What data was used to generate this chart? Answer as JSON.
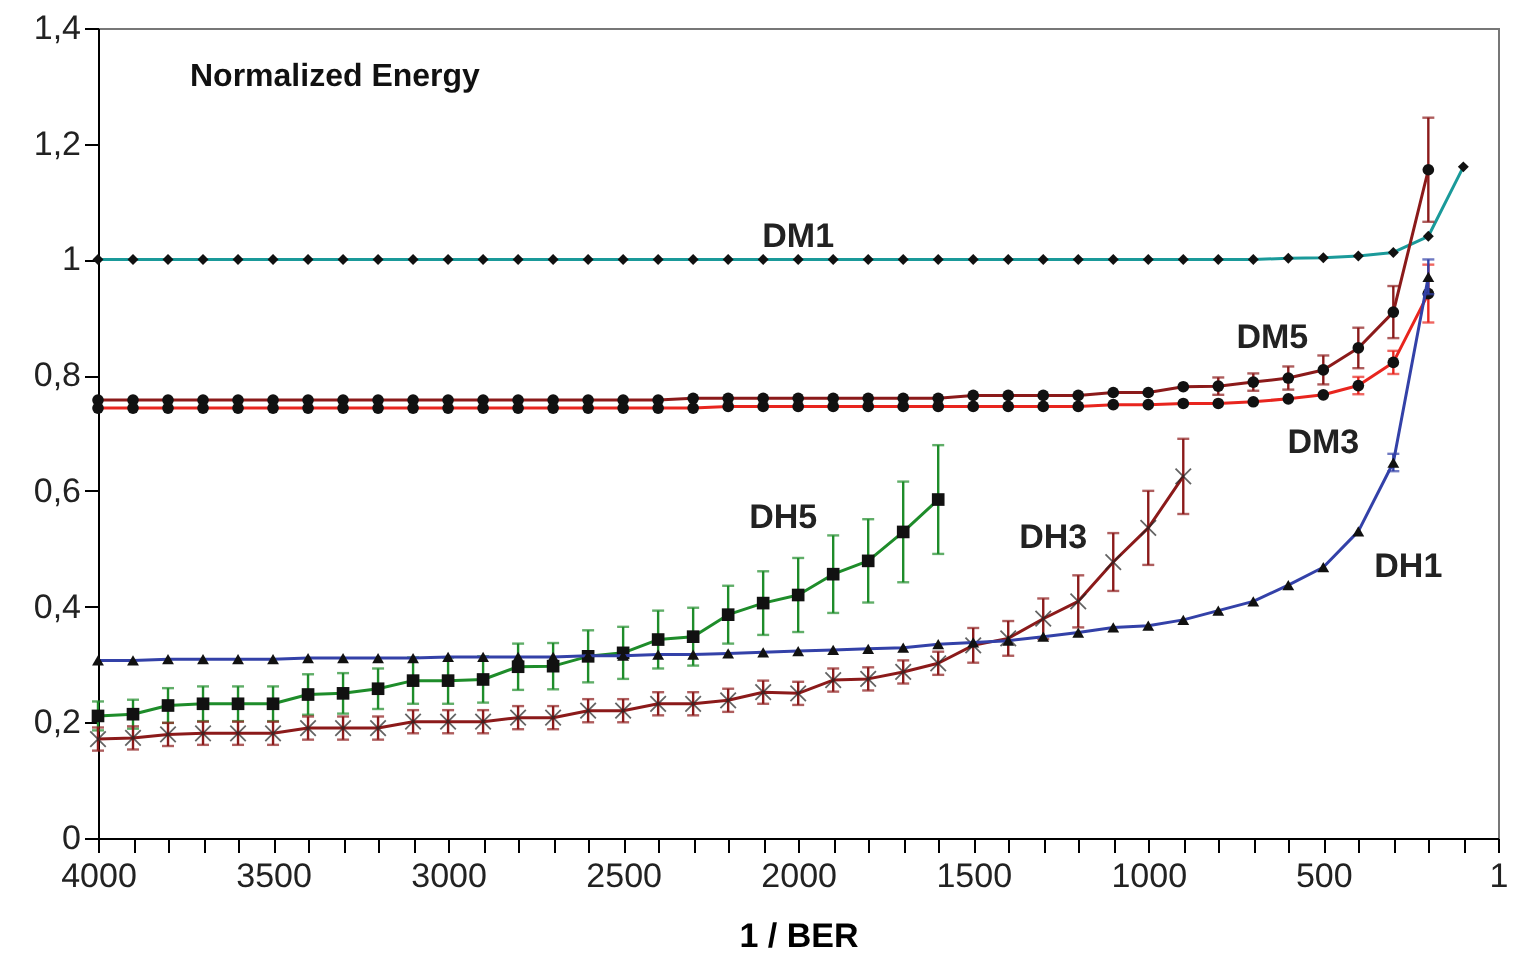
{
  "chart_data": {
    "type": "line",
    "title": "Normalized Energy",
    "xlabel": "1 / BER",
    "x": [
      4000,
      3900,
      3800,
      3700,
      3600,
      3500,
      3400,
      3300,
      3200,
      3100,
      3000,
      2900,
      2800,
      2700,
      2600,
      2500,
      2400,
      2300,
      2200,
      2100,
      2000,
      1900,
      1800,
      1700,
      1600,
      1500,
      1400,
      1300,
      1200,
      1100,
      1000,
      900,
      800,
      700,
      600,
      500,
      400,
      300,
      200
    ],
    "series": [
      {
        "name": "DM1",
        "color": "#1a9a9a",
        "marker": "diamond",
        "x": [
          4000,
          3900,
          3800,
          3700,
          3600,
          3500,
          3400,
          3300,
          3200,
          3100,
          3000,
          2900,
          2800,
          2700,
          2600,
          2500,
          2400,
          2300,
          2200,
          2100,
          2000,
          1900,
          1800,
          1700,
          1600,
          1500,
          1400,
          1300,
          1200,
          1100,
          1000,
          900,
          800,
          700,
          600,
          500,
          400,
          300,
          200,
          100
        ],
        "values": [
          1.0,
          1.0,
          1.0,
          1.0,
          1.0,
          1.0,
          1.0,
          1.0,
          1.0,
          1.0,
          1.0,
          1.0,
          1.0,
          1.0,
          1.0,
          1.0,
          1.0,
          1.0,
          1.0,
          1.0,
          1.0,
          1.0,
          1.0,
          1.0,
          1.0,
          1.0,
          1.0,
          1.0,
          1.0,
          1.0,
          1.0,
          1.0,
          1.0,
          1.0,
          1.002,
          1.003,
          1.006,
          1.012,
          1.04,
          1.16
        ]
      },
      {
        "name": "DM5",
        "color": "#8b1a1a",
        "marker": "circle",
        "values": [
          0.757,
          0.757,
          0.757,
          0.757,
          0.757,
          0.757,
          0.757,
          0.757,
          0.757,
          0.757,
          0.757,
          0.757,
          0.757,
          0.757,
          0.757,
          0.757,
          0.757,
          0.76,
          0.76,
          0.76,
          0.76,
          0.76,
          0.76,
          0.76,
          0.76,
          0.765,
          0.765,
          0.765,
          0.765,
          0.77,
          0.77,
          0.78,
          0.781,
          0.788,
          0.795,
          0.809,
          0.847,
          0.909,
          1.155
        ],
        "errors": [
          null,
          null,
          null,
          null,
          null,
          null,
          null,
          null,
          null,
          null,
          null,
          null,
          null,
          null,
          null,
          null,
          null,
          null,
          null,
          null,
          null,
          null,
          null,
          null,
          null,
          null,
          null,
          null,
          null,
          null,
          null,
          null,
          0.015,
          0.015,
          0.02,
          0.025,
          0.035,
          0.045,
          0.09
        ]
      },
      {
        "name": "DM3",
        "color": "#e8251e",
        "marker": "circle",
        "values": [
          0.743,
          0.743,
          0.743,
          0.743,
          0.743,
          0.743,
          0.743,
          0.743,
          0.743,
          0.743,
          0.743,
          0.743,
          0.743,
          0.743,
          0.743,
          0.743,
          0.743,
          0.743,
          0.746,
          0.746,
          0.746,
          0.746,
          0.746,
          0.746,
          0.746,
          0.746,
          0.746,
          0.746,
          0.746,
          0.749,
          0.749,
          0.751,
          0.751,
          0.754,
          0.759,
          0.766,
          0.782,
          0.822,
          0.941
        ],
        "errors": [
          null,
          null,
          null,
          null,
          null,
          null,
          null,
          null,
          null,
          null,
          null,
          null,
          null,
          null,
          null,
          null,
          null,
          null,
          null,
          null,
          null,
          null,
          null,
          null,
          null,
          null,
          null,
          null,
          null,
          null,
          null,
          null,
          null,
          null,
          null,
          null,
          0.015,
          0.02,
          0.05
        ]
      },
      {
        "name": "DH5",
        "color": "#1e8c2a",
        "marker": "square",
        "x": [
          4000,
          3900,
          3800,
          3700,
          3600,
          3500,
          3400,
          3300,
          3200,
          3100,
          3000,
          2900,
          2800,
          2700,
          2600,
          2500,
          2400,
          2300,
          2200,
          2100,
          2000,
          1900,
          1800,
          1700,
          1600
        ],
        "values": [
          0.211,
          0.214,
          0.229,
          0.232,
          0.232,
          0.232,
          0.248,
          0.25,
          0.258,
          0.272,
          0.272,
          0.274,
          0.296,
          0.297,
          0.314,
          0.32,
          0.343,
          0.348,
          0.386,
          0.406,
          0.42,
          0.456,
          0.479,
          0.529,
          0.585
        ],
        "errors": [
          0.025,
          0.025,
          0.03,
          0.03,
          0.03,
          0.03,
          0.035,
          0.035,
          0.035,
          0.04,
          0.04,
          0.04,
          0.04,
          0.04,
          0.045,
          0.045,
          0.05,
          0.05,
          0.05,
          0.055,
          0.064,
          0.067,
          0.072,
          0.087,
          0.094
        ]
      },
      {
        "name": "DH3",
        "color": "#8b1a1a",
        "marker": "cross",
        "x": [
          4000,
          3900,
          3800,
          3700,
          3600,
          3500,
          3400,
          3300,
          3200,
          3100,
          3000,
          2900,
          2800,
          2700,
          2600,
          2500,
          2400,
          2300,
          2200,
          2100,
          2000,
          1900,
          1800,
          1700,
          1600,
          1500,
          1400,
          1300,
          1200,
          1100,
          1000,
          900
        ],
        "values": [
          0.171,
          0.173,
          0.179,
          0.181,
          0.181,
          0.181,
          0.19,
          0.19,
          0.19,
          0.201,
          0.201,
          0.201,
          0.208,
          0.208,
          0.22,
          0.22,
          0.232,
          0.232,
          0.238,
          0.252,
          0.25,
          0.273,
          0.275,
          0.287,
          0.302,
          0.333,
          0.345,
          0.379,
          0.409,
          0.477,
          0.536,
          0.625
        ],
        "errors": [
          0.02,
          0.02,
          0.02,
          0.02,
          0.02,
          0.02,
          0.02,
          0.02,
          0.02,
          0.02,
          0.02,
          0.02,
          0.02,
          0.02,
          0.02,
          0.02,
          0.02,
          0.02,
          0.02,
          0.02,
          0.02,
          0.02,
          0.02,
          0.02,
          0.02,
          0.03,
          0.03,
          0.035,
          0.045,
          0.05,
          0.064,
          0.065
        ]
      },
      {
        "name": "DH1",
        "color": "#3341a8",
        "marker": "triangle",
        "values": [
          0.307,
          0.307,
          0.309,
          0.309,
          0.309,
          0.309,
          0.311,
          0.311,
          0.311,
          0.311,
          0.313,
          0.313,
          0.313,
          0.313,
          0.315,
          0.315,
          0.317,
          0.317,
          0.319,
          0.321,
          0.323,
          0.325,
          0.327,
          0.329,
          0.335,
          0.338,
          0.341,
          0.348,
          0.355,
          0.364,
          0.367,
          0.377,
          0.393,
          0.409,
          0.437,
          0.468,
          0.53,
          0.649,
          0.97
        ],
        "errors": [
          null,
          null,
          null,
          null,
          null,
          null,
          null,
          null,
          null,
          null,
          null,
          null,
          null,
          null,
          null,
          null,
          null,
          null,
          null,
          null,
          null,
          null,
          null,
          null,
          null,
          null,
          null,
          null,
          null,
          null,
          null,
          null,
          null,
          null,
          null,
          null,
          null,
          0.015,
          0.03
        ]
      }
    ],
    "xlim": [
      4000,
      1
    ],
    "xticks": [
      4000,
      {
        "value": 3900,
        "label": null
      },
      {
        "value": 3800,
        "label": null
      },
      {
        "value": 3700,
        "label": null
      },
      {
        "value": 3600,
        "label": null
      },
      3500,
      {
        "value": 3400,
        "label": null
      },
      {
        "value": 3300,
        "label": null
      },
      {
        "value": 3200,
        "label": null
      },
      {
        "value": 3100,
        "label": null
      },
      3000,
      {
        "value": 2900,
        "label": null
      },
      {
        "value": 2800,
        "label": null
      },
      {
        "value": 2700,
        "label": null
      },
      {
        "value": 2600,
        "label": null
      },
      2500,
      {
        "value": 2400,
        "label": null
      },
      {
        "value": 2300,
        "label": null
      },
      {
        "value": 2200,
        "label": null
      },
      {
        "value": 2100,
        "label": null
      },
      2000,
      {
        "value": 1900,
        "label": null
      },
      {
        "value": 1800,
        "label": null
      },
      {
        "value": 1700,
        "label": null
      },
      {
        "value": 1600,
        "label": null
      },
      1500,
      {
        "value": 1400,
        "label": null
      },
      {
        "value": 1300,
        "label": null
      },
      {
        "value": 1200,
        "label": null
      },
      {
        "value": 1100,
        "label": null
      },
      1000,
      {
        "value": 900,
        "label": null
      },
      {
        "value": 800,
        "label": null
      },
      {
        "value": 700,
        "label": null
      },
      {
        "value": 600,
        "label": null
      },
      500,
      {
        "value": 400,
        "label": null
      },
      {
        "value": 300,
        "label": null
      },
      {
        "value": 200,
        "label": null
      },
      {
        "value": 100,
        "label": null
      },
      1
    ],
    "ylim": [
      0,
      1.4
    ],
    "yticks": [
      0,
      {
        "value": 0.2,
        "label": "0,2"
      },
      {
        "value": 0.4,
        "label": "0,4"
      },
      {
        "value": 0.6,
        "label": "0,6"
      },
      {
        "value": 0.8,
        "label": "0,8"
      },
      1,
      {
        "value": 1.2,
        "label": "1,2"
      },
      {
        "value": 1.4,
        "label": "1,4"
      }
    ],
    "grid": false,
    "line_style": "solid"
  }
}
